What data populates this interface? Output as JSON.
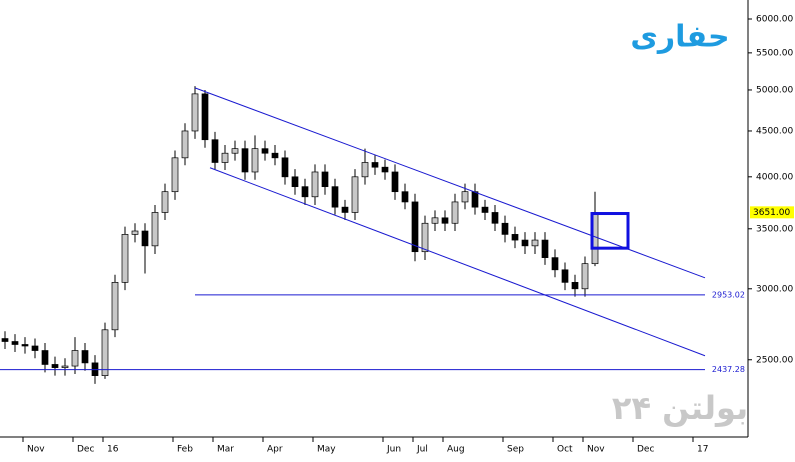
{
  "chart_data": {
    "type": "candlestick",
    "title": "حفاری",
    "watermark": "بولتن ۲۴",
    "log_scale": true,
    "ylim": [
      2050,
      6300
    ],
    "xlim": [
      -0.5,
      74.3
    ],
    "yticks": [
      {
        "value": 2500,
        "label": "2500.00"
      },
      {
        "value": 3000,
        "label": "3000.00"
      },
      {
        "value": 3500,
        "label": "3500.00"
      },
      {
        "value": 4000,
        "label": "4000.00"
      },
      {
        "value": 4500,
        "label": "4500.00"
      },
      {
        "value": 5000,
        "label": "5000.00"
      },
      {
        "value": 5500,
        "label": "5500.00"
      },
      {
        "value": 6000,
        "label": "6000.00"
      }
    ],
    "xticks": [
      {
        "value": 3,
        "label": "Nov"
      },
      {
        "value": 8,
        "label": "Dec"
      },
      {
        "value": 11,
        "label": "16"
      },
      {
        "value": 18,
        "label": "Feb"
      },
      {
        "value": 22,
        "label": "Mar"
      },
      {
        "value": 27,
        "label": "Apr"
      },
      {
        "value": 32,
        "label": "May"
      },
      {
        "value": 39,
        "label": "Jun"
      },
      {
        "value": 42,
        "label": "Jul"
      },
      {
        "value": 45,
        "label": "Aug"
      },
      {
        "value": 51,
        "label": "Sep"
      },
      {
        "value": 56,
        "label": "Oct"
      },
      {
        "value": 59,
        "label": "Nov"
      },
      {
        "value": 64,
        "label": "Dec"
      },
      {
        "value": 70,
        "label": "17"
      }
    ],
    "up_color": "#c8c8c8",
    "down_color": "#000000",
    "line_color": "#1a1ad0",
    "title_color": "#1e9be0",
    "open": [
      2640,
      2620,
      2600,
      2590,
      2560,
      2470,
      2450,
      2460,
      2560,
      2480,
      2400,
      2700,
      3050,
      3450,
      3480,
      3350,
      3650,
      3850,
      4200,
      4500,
      4950,
      4400,
      4150,
      4250,
      4300,
      4050,
      4300,
      4250,
      4200,
      4000,
      3900,
      3800,
      4050,
      3900,
      3700,
      3650,
      4000,
      4150,
      4100,
      4050,
      3850,
      3750,
      3300,
      3550,
      3600,
      3550,
      3750,
      3850,
      3700,
      3650,
      3550,
      3450,
      3400,
      3350,
      3400,
      3250,
      3150,
      3050,
      3000,
      3200
    ],
    "high": [
      2690,
      2670,
      2650,
      2640,
      2610,
      2520,
      2510,
      2650,
      2610,
      2530,
      2750,
      3110,
      3520,
      3550,
      3550,
      3720,
      3930,
      4280,
      4590,
      5050,
      5000,
      4490,
      4340,
      4390,
      4390,
      4450,
      4390,
      4340,
      4280,
      4080,
      3980,
      4130,
      4130,
      3980,
      3770,
      4080,
      4300,
      4230,
      4180,
      4130,
      3930,
      3830,
      3620,
      3670,
      3670,
      3830,
      3930,
      3930,
      3770,
      3720,
      3620,
      3520,
      3470,
      3470,
      3470,
      3320,
      3210,
      3110,
      3260,
      3850
    ],
    "low": [
      2570,
      2550,
      2540,
      2510,
      2420,
      2400,
      2400,
      2410,
      2430,
      2350,
      2380,
      2650,
      2990,
      3380,
      3120,
      3280,
      3580,
      3770,
      4120,
      4410,
      4310,
      4070,
      4070,
      4170,
      3970,
      3970,
      4170,
      4120,
      3920,
      3820,
      3720,
      3720,
      3820,
      3630,
      3580,
      3580,
      3920,
      4020,
      3970,
      3770,
      3680,
      3220,
      3230,
      3480,
      3480,
      3480,
      3680,
      3630,
      3580,
      3480,
      3380,
      3330,
      3280,
      3280,
      3190,
      3090,
      2990,
      2940,
      2940,
      3180
    ],
    "close": [
      2620,
      2600,
      2590,
      2560,
      2470,
      2450,
      2460,
      2560,
      2480,
      2400,
      2700,
      3050,
      3450,
      3480,
      3350,
      3650,
      3850,
      4200,
      4500,
      4950,
      4400,
      4150,
      4250,
      4300,
      4050,
      4300,
      4250,
      4200,
      4000,
      3900,
      3800,
      4050,
      3900,
      3700,
      3650,
      4000,
      4150,
      4100,
      4050,
      3850,
      3750,
      3300,
      3550,
      3600,
      3550,
      3750,
      3850,
      3700,
      3650,
      3550,
      3450,
      3400,
      3350,
      3400,
      3250,
      3150,
      3050,
      3000,
      3200,
      3651
    ],
    "last_label": "3651.00",
    "trendlines": [
      {
        "x": [
          19,
          70
        ],
        "y": [
          5027,
          3086
        ]
      },
      {
        "x": [
          20.5,
          70
        ],
        "y": [
          4094,
          2526
        ]
      }
    ],
    "levels": [
      {
        "value": 2953.02,
        "from": 19,
        "to": 70
      },
      {
        "value": 2437.28,
        "from": -0.5,
        "to": 70
      }
    ],
    "box": {
      "x": [
        58.7,
        62.3
      ],
      "y": [
        3330,
        3640
      ]
    }
  }
}
